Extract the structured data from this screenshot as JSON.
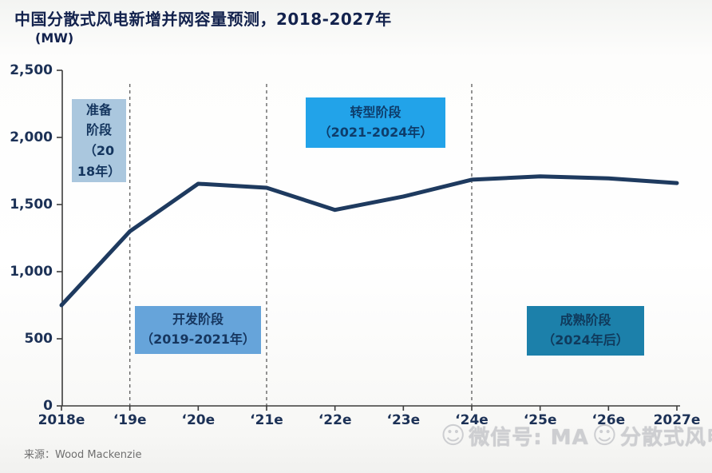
{
  "title": "中国分散式风电新增并网容量预测，2018-2027年",
  "subtitle": "(MW)",
  "source": "来源：Wood Mackenzie",
  "watermark": {
    "icon1": "☺",
    "part1": "微信号: MA",
    "icon2": "☺",
    "part2": "分散式风电"
  },
  "colors": {
    "title": "#13224d",
    "axis": "#3c3c3c",
    "tick_label": "#1c3156",
    "line": "#1e3a5f",
    "dashed_line": "#666666",
    "phase_prep_bg": "#aac7de",
    "phase_dev_bg": "#66a4da",
    "phase_transform_bg": "#22a3e9",
    "phase_mature_bg": "#1c80aa"
  },
  "phases": [
    {
      "name": "准备阶段",
      "text": "准备\n阶段\n（20\n18年）",
      "bg": "#aac7de",
      "color": "#14355e"
    },
    {
      "name": "开发阶段",
      "text": "开发阶段\n（2019-2021年）",
      "bg": "#66a4da",
      "color": "#16365f"
    },
    {
      "name": "转型阶段",
      "text": "转型阶段\n（2021-2024年）",
      "bg": "#22a3e9",
      "color": "#0e3d6b"
    },
    {
      "name": "成熟阶段",
      "text": "成熟阶段\n（2024年后）",
      "bg": "#1c80aa",
      "color": "#103a5c"
    }
  ],
  "chart_data": {
    "type": "line",
    "title": "中国分散式风电新增并网容量预测，2018-2027年",
    "ylabel": "MW",
    "categories": [
      "2018e",
      "‘19e",
      "‘20e",
      "‘21e",
      "‘22e",
      "‘23e",
      "‘24e",
      "‘25e",
      "‘26e",
      "2027e"
    ],
    "values": [
      750,
      1300,
      1655,
      1625,
      1460,
      1560,
      1685,
      1710,
      1695,
      1660
    ],
    "ylim": [
      0,
      2500
    ],
    "ytick_step": 500,
    "grid": false,
    "legend": "none",
    "dashed_vlines_at_categories": [
      "‘19e",
      "‘21e",
      "‘24e"
    ]
  }
}
